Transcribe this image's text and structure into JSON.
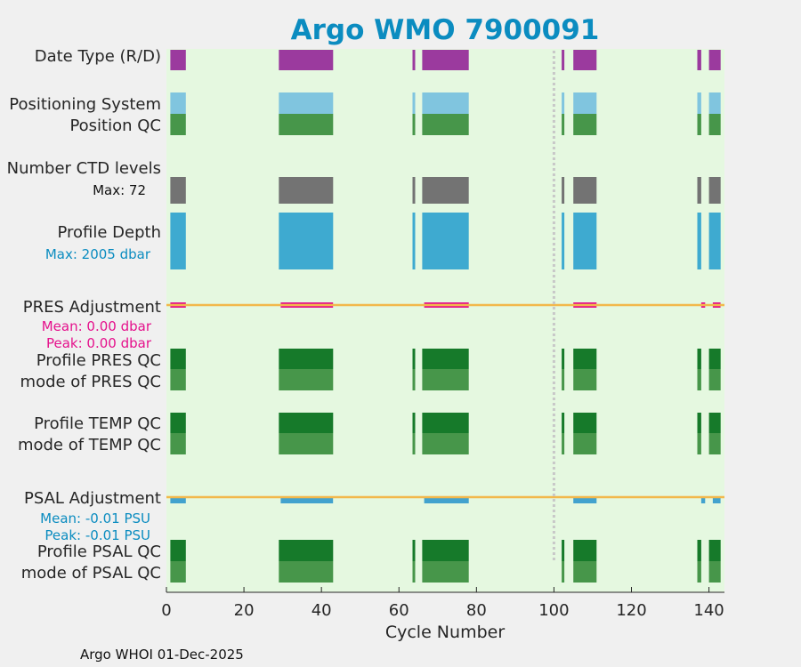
{
  "chart_data": {
    "type": "bar",
    "title": "Argo WMO 7900091",
    "xlabel": "Cycle Number",
    "xlim": [
      0,
      144
    ],
    "xticks": [
      0,
      20,
      40,
      60,
      80,
      100,
      120,
      140
    ],
    "xtick_labels": [
      "0",
      "20",
      "40",
      "60",
      "80",
      "100",
      "120",
      "140"
    ],
    "footer": "Argo WHOI 01-Dec-2025",
    "reference_line_cycle": 100,
    "cycle_blocks": [
      [
        1,
        5
      ],
      [
        29,
        43
      ],
      [
        63.5,
        64
      ],
      [
        66,
        78
      ],
      [
        102,
        102.5
      ],
      [
        105,
        111
      ],
      [
        137,
        138
      ],
      [
        140,
        143
      ]
    ],
    "row_labels": [
      "Date Type (R/D)",
      "Positioning System",
      "Position QC",
      "Number CTD levels",
      "Profile Depth",
      "PRES Adjustment",
      "Profile PRES QC",
      "mode of PRES QC",
      "Profile TEMP QC",
      "mode of TEMP QC",
      "PSAL Adjustment",
      "Profile PSAL QC",
      "mode of PSAL QC"
    ],
    "annotations": {
      "ctd_max": "Max: 72",
      "depth_max": "Max: 2005 dbar",
      "pres_mean": "Mean: 0.00 dbar",
      "pres_peak": "Peak: 0.00 dbar",
      "psal_mean": "Mean: -0.01 PSU",
      "psal_peak": "Peak: -0.01 PSU"
    },
    "colors": {
      "background": "#e5f8e0",
      "date_type": "#9b3a9e",
      "positioning": "#80c5df",
      "qc_good": "#47964a",
      "qc_profile": "#167a2a",
      "ctd": "#737373",
      "depth": "#3eaad0",
      "pres_adj": "#e5118c",
      "psal_adj": "#42a2ce",
      "zero_line": "#f2b84b",
      "title": "#0b8cc0",
      "ref_line": "#c8c8c8"
    },
    "tracks": [
      {
        "name": "date-type",
        "color": "date_type",
        "band": [
          0,
          0
        ]
      },
      {
        "name": "positioning-system",
        "color": "positioning",
        "band": [
          1,
          1
        ]
      },
      {
        "name": "position-qc",
        "color": "qc_good",
        "band": [
          2,
          2
        ]
      },
      {
        "name": "number-ctd",
        "color": "ctd",
        "band": [
          3,
          3
        ]
      },
      {
        "name": "profile-depth",
        "color": "depth",
        "band": [
          4,
          4
        ]
      },
      {
        "name": "pres-adjustment",
        "color": "pres_adj",
        "band": [
          5,
          5
        ]
      },
      {
        "name": "profile-pres-qc",
        "color": "qc_profile",
        "band": [
          6,
          6
        ]
      },
      {
        "name": "mode-pres-qc",
        "color": "qc_good",
        "band": [
          7,
          7
        ]
      },
      {
        "name": "profile-temp-qc",
        "color": "qc_profile",
        "band": [
          8,
          8
        ]
      },
      {
        "name": "mode-temp-qc",
        "color": "qc_good",
        "band": [
          9,
          9
        ]
      },
      {
        "name": "psal-adjustment",
        "color": "psal_adj",
        "band": [
          10,
          10
        ]
      },
      {
        "name": "profile-psal-qc",
        "color": "qc_profile",
        "band": [
          11,
          11
        ]
      },
      {
        "name": "mode-psal-qc",
        "color": "qc_good",
        "band": [
          12,
          12
        ]
      }
    ]
  }
}
